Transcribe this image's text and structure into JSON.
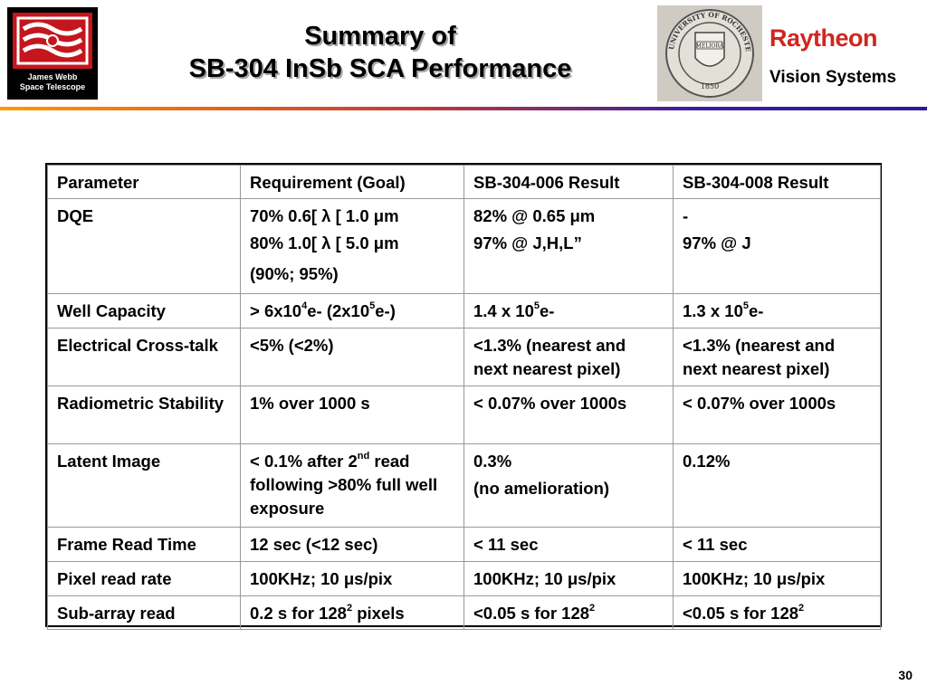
{
  "header": {
    "title_line1": "Summary of",
    "title_line2": "SB-304 InSb SCA Performance",
    "left_logo": {
      "line1": "James Webb",
      "line2": "Space Telescope"
    },
    "seal": {
      "top_text": "UNIVERSITY OF ROCHESTER",
      "shield": "MELIORA",
      "year": "1850"
    },
    "company": "Raytheon",
    "division": "Vision Systems",
    "rule_colors": [
      "#ff9900",
      "#c33a3a",
      "#3a1da0",
      "#2b1b9a"
    ]
  },
  "table": {
    "headers": [
      "Parameter",
      "Requirement (Goal)",
      "SB-304-006 Result",
      "SB-304-008 Result"
    ],
    "rows": [
      {
        "parameter": "DQE",
        "requirement": [
          "70% 0.6[ λ [ 1.0 μm",
          "80% 1.0[ λ [ 5.0 μm",
          "(90%; 95%)"
        ],
        "r006": [
          "82% @ 0.65 μm",
          "97% @ J,H,L”"
        ],
        "r008": [
          "-",
          "97% @ J"
        ]
      },
      {
        "parameter": "Well Capacity",
        "requirement": {
          "a": "> 6x10",
          "a_exp": "4",
          "b": "e- (2x10",
          "b_exp": "5",
          "c": "e-)"
        },
        "r006": {
          "a": "1.4 x 10",
          "a_exp": "5",
          "b": "e-"
        },
        "r008": {
          "a": "1.3 x 10",
          "a_exp": "5",
          "b": "e-"
        }
      },
      {
        "parameter": "Electrical Cross-talk",
        "requirement": "<5% (<2%)",
        "r006": "<1.3% (nearest and next nearest pixel)",
        "r008": "<1.3% (nearest and next nearest pixel)"
      },
      {
        "parameter": "Radiometric Stability",
        "requirement": "1% over 1000 s",
        "r006": "< 0.07% over 1000s",
        "r008": "< 0.07% over 1000s"
      },
      {
        "parameter": "Latent Image",
        "requirement": {
          "a": "< 0.1% after 2",
          "a_sup": "nd",
          "b": " read following >80% full well exposure"
        },
        "r006": [
          "0.3%",
          "(no amelioration)"
        ],
        "r008": "0.12%"
      },
      {
        "parameter": "Frame Read Time",
        "requirement": "12 sec (<12 sec)",
        "r006": "< 11 sec",
        "r008": "< 11 sec"
      },
      {
        "parameter": "Pixel read rate",
        "requirement": "100KHz; 10 μs/pix",
        "r006": "100KHz; 10 μs/pix",
        "r008": "100KHz; 10 μs/pix"
      },
      {
        "parameter": "Sub-array read",
        "requirement": {
          "a": "0.2 s for 128",
          "a_exp": "2",
          "b": " pixels"
        },
        "r006": {
          "a": "<0.05 s for 128",
          "a_exp": "2"
        },
        "r008": {
          "a": "<0.05 s for 128",
          "a_exp": "2"
        }
      }
    ]
  },
  "footer": {
    "page_number": "30"
  }
}
